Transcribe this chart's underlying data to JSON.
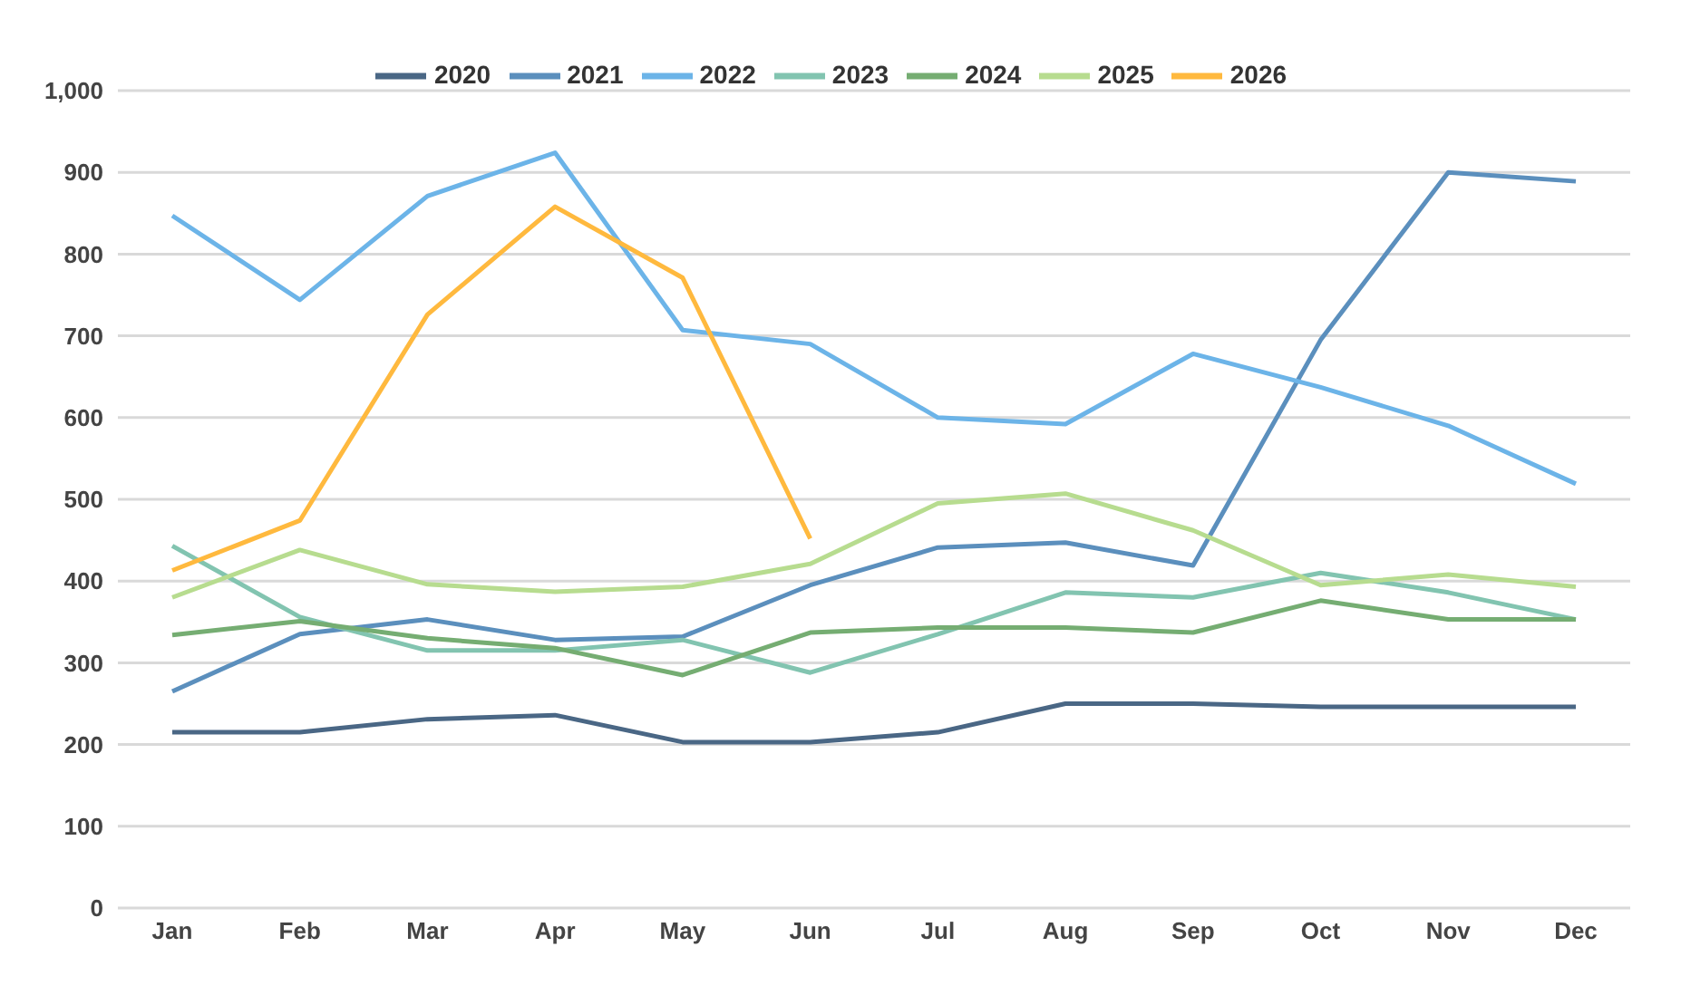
{
  "chart_data": {
    "type": "line",
    "categories": [
      "Jan",
      "Feb",
      "Mar",
      "Apr",
      "May",
      "Jun",
      "Jul",
      "Aug",
      "Sep",
      "Oct",
      "Nov",
      "Dec"
    ],
    "series": [
      {
        "name": "2020",
        "color": "#4a6785",
        "values": [
          215,
          215,
          231,
          236,
          203,
          203,
          215,
          250,
          250,
          246,
          246,
          246
        ]
      },
      {
        "name": "2021",
        "color": "#5b8fbd",
        "values": [
          265,
          335,
          353,
          328,
          332,
          395,
          441,
          447,
          419,
          695,
          900,
          889
        ]
      },
      {
        "name": "2022",
        "color": "#6cb4e8",
        "values": [
          847,
          744,
          871,
          924,
          707,
          690,
          600,
          592,
          678,
          637,
          590,
          519
        ]
      },
      {
        "name": "2023",
        "color": "#82c4b0",
        "values": [
          443,
          356,
          315,
          315,
          328,
          288,
          335,
          386,
          380,
          410,
          386,
          353
        ]
      },
      {
        "name": "2024",
        "color": "#75ad72",
        "values": [
          334,
          351,
          330,
          318,
          285,
          337,
          343,
          343,
          337,
          376,
          353,
          353
        ]
      },
      {
        "name": "2025",
        "color": "#b7dc8f",
        "values": [
          380,
          438,
          396,
          387,
          393,
          421,
          495,
          507,
          462,
          395,
          408,
          393
        ]
      },
      {
        "name": "2026",
        "color": "#ffb93e",
        "values": [
          413,
          474,
          726,
          858,
          771,
          452,
          null,
          null,
          null,
          null,
          null,
          null
        ]
      }
    ],
    "ylim": [
      0,
      1000
    ],
    "yticks": [
      0,
      100,
      200,
      300,
      400,
      500,
      600,
      700,
      800,
      900,
      {
        "value": 1000,
        "label": "1,000"
      }
    ],
    "grid": "y",
    "legend": "top",
    "marker": "none",
    "line_style": "solid"
  }
}
